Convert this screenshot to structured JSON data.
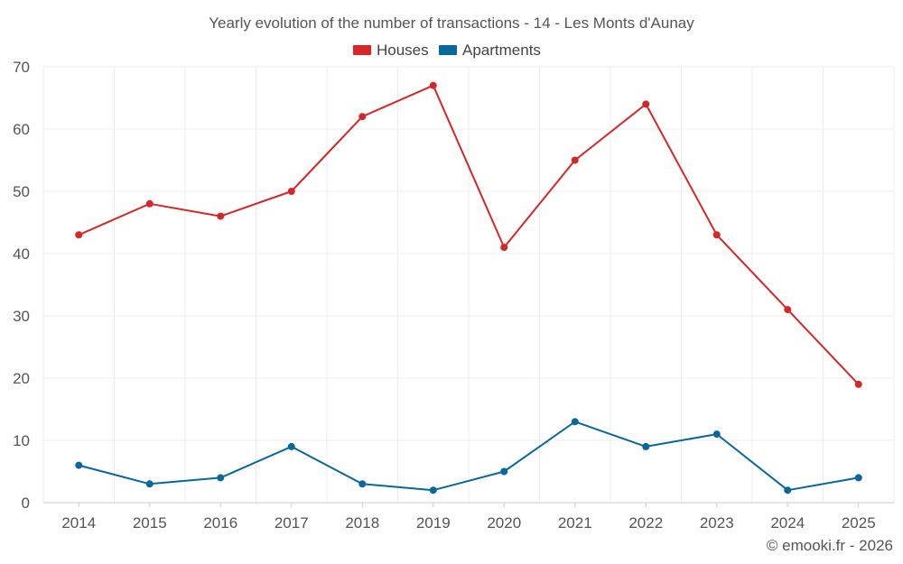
{
  "chart_data": {
    "type": "line",
    "title": "Yearly evolution of the number of transactions - 14 - Les Monts d'Aunay",
    "categories": [
      "2014",
      "2015",
      "2016",
      "2017",
      "2018",
      "2019",
      "2020",
      "2021",
      "2022",
      "2023",
      "2024",
      "2025"
    ],
    "series": [
      {
        "name": "Houses",
        "color": "#d62728",
        "values": [
          43,
          48,
          46,
          50,
          62,
          67,
          41,
          55,
          64,
          43,
          31,
          19
        ]
      },
      {
        "name": "Apartments",
        "color": "#08689c",
        "values": [
          6,
          3,
          4,
          9,
          3,
          2,
          5,
          13,
          9,
          11,
          2,
          4
        ]
      }
    ],
    "ylim": [
      0,
      70
    ],
    "yticks": [
      0,
      10,
      20,
      30,
      40,
      50,
      60,
      70
    ],
    "xlabel": "",
    "ylabel": "",
    "grid": true,
    "legend_position": "top-center"
  },
  "credit": "© emooki.fr - 2026"
}
